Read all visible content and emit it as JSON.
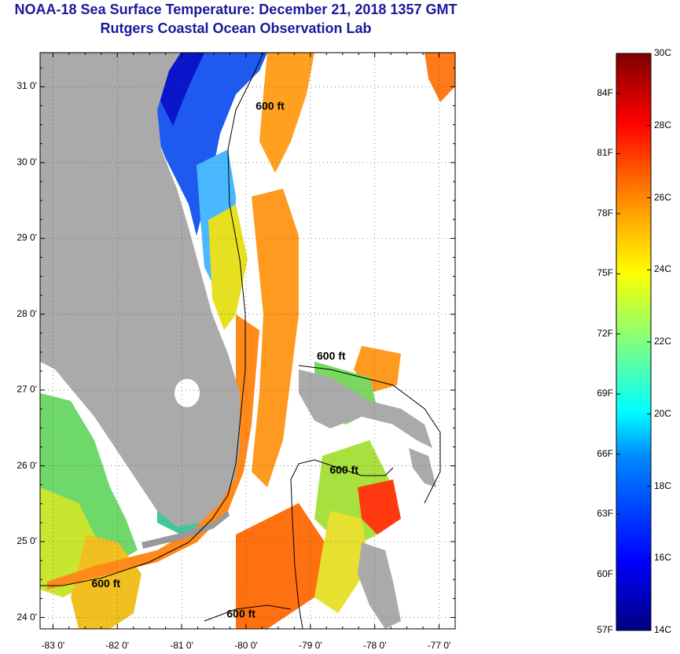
{
  "title": "NOAA-18 Sea Surface Temperature:  December 21, 2018 1357 GMT",
  "subtitle": "Rutgers Coastal Ocean Observation Lab",
  "map": {
    "lat_labels": [
      "31 0'",
      "30 0'",
      "29 0'",
      "28 0'",
      "27 0'",
      "26 0'",
      "25 0'",
      "24 0'"
    ],
    "lon_labels": [
      "-83 0'",
      "-82 0'",
      "-81 0'",
      "-80 0'",
      "-79 0'",
      "-78 0'",
      "-77 0'"
    ],
    "contour_label": "600 ft",
    "contour_labels": [
      {
        "text": "600 ft",
        "lon": -79.85,
        "lat": 30.7
      },
      {
        "text": "600 ft",
        "lon": -78.9,
        "lat": 27.4
      },
      {
        "text": "600 ft",
        "lon": -78.7,
        "lat": 25.9
      },
      {
        "text": "600 ft",
        "lon": -82.4,
        "lat": 24.4
      },
      {
        "text": "600 ft",
        "lon": -80.3,
        "lat": 24.0
      }
    ],
    "land_color": "#aaaaaa",
    "cloud_color": "#ffffff"
  },
  "colorbar": {
    "fahrenheit_labels": [
      "84F",
      "81F",
      "78F",
      "75F",
      "72F",
      "69F",
      "66F",
      "63F",
      "60F",
      "57F"
    ],
    "celsius_labels": [
      "30C",
      "28C",
      "26C",
      "24C",
      "22C",
      "20C",
      "18C",
      "16C",
      "14C"
    ],
    "min_c": 14,
    "max_c": 30
  }
}
